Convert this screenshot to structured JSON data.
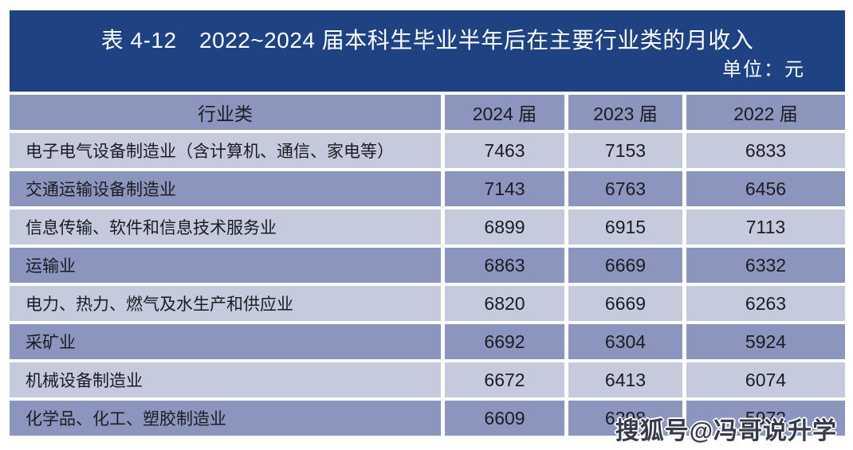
{
  "header": {
    "title": "表 4-12　2022~2024 届本科生毕业半年后在主要行业类的月收入",
    "unit": "单位：元"
  },
  "table": {
    "columns": [
      "行业类",
      "2024 届",
      "2023 届",
      "2022 届"
    ],
    "rows": [
      {
        "industry": "电子电气设备制造业（含计算机、通信、家电等）",
        "values": [
          "7463",
          "7153",
          "6833"
        ]
      },
      {
        "industry": "交通运输设备制造业",
        "values": [
          "7143",
          "6763",
          "6456"
        ]
      },
      {
        "industry": "信息传输、软件和信息技术服务业",
        "values": [
          "6899",
          "6915",
          "7113"
        ]
      },
      {
        "industry": "运输业",
        "values": [
          "6863",
          "6669",
          "6332"
        ]
      },
      {
        "industry": "电力、热力、燃气及水生产和供应业",
        "values": [
          "6820",
          "6669",
          "6263"
        ]
      },
      {
        "industry": "采矿业",
        "values": [
          "6692",
          "6304",
          "5924"
        ]
      },
      {
        "industry": "机械设备制造业",
        "values": [
          "6672",
          "6413",
          "6074"
        ]
      },
      {
        "industry": "化学品、化工、塑胶制造业",
        "values": [
          "6609",
          "6398",
          "5973"
        ]
      }
    ]
  },
  "footer": {
    "watermark": "搜狐号@冯哥说升学"
  },
  "colors": {
    "band": "#1e4282",
    "row_dark": "#8c95be",
    "row_light": "#c6cadd",
    "title_text": "#ffffff",
    "cell_text": "#1b1c22"
  },
  "chart_data": {
    "type": "table",
    "title": "表 4-12 2022~2024 届本科生毕业半年后在主要行业类的月收入",
    "unit": "元",
    "columns": [
      "行业类",
      "2024 届",
      "2023 届",
      "2022 届"
    ],
    "rows": [
      [
        "电子电气设备制造业（含计算机、通信、家电等）",
        7463,
        7153,
        6833
      ],
      [
        "交通运输设备制造业",
        7143,
        6763,
        6456
      ],
      [
        "信息传输、软件和信息技术服务业",
        6899,
        6915,
        7113
      ],
      [
        "运输业",
        6863,
        6669,
        6332
      ],
      [
        "电力、热力、燃气及水生产和供应业",
        6820,
        6669,
        6263
      ],
      [
        "采矿业",
        6692,
        6304,
        5924
      ],
      [
        "机械设备制造业",
        6672,
        6413,
        6074
      ],
      [
        "化学品、化工、塑胶制造业",
        6609,
        6398,
        5973
      ]
    ]
  }
}
